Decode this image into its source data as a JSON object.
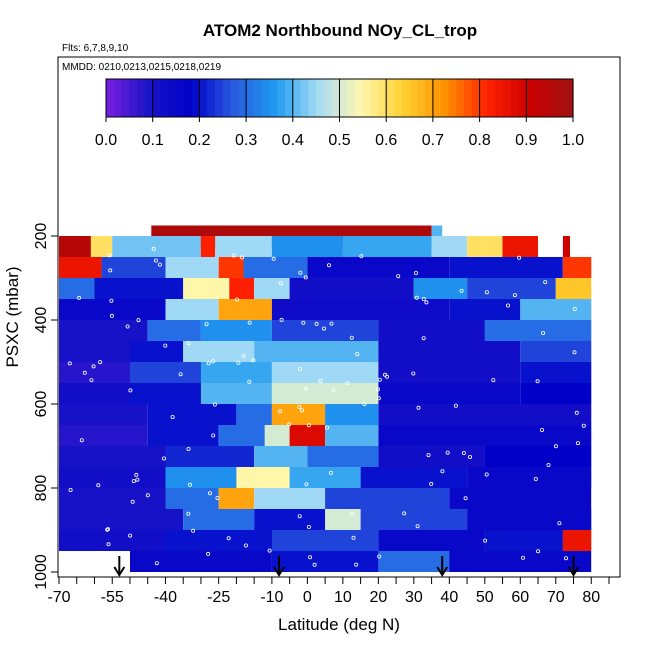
{
  "chart_data": {
    "type": "heatmap",
    "title": "ATOM2 Northbound NOy_CL_trop",
    "flights_label": "Flts: 6,7,8,9,10",
    "dates_label": "MMDD: 0210,0213,0215,0218,0219",
    "xlabel": "Latitude (deg N)",
    "ylabel": "PSXC (mbar)",
    "xlim": [
      -70,
      85
    ],
    "ylim": [
      1000,
      100
    ],
    "x_tick_labels": [
      "-70",
      "-55",
      "-40",
      "-25",
      "-10",
      "0",
      "10",
      "20",
      "30",
      "40",
      "50",
      "60",
      "70",
      "80"
    ],
    "x_tick_values": [
      -70,
      -55,
      -40,
      -25,
      -10,
      0,
      10,
      20,
      30,
      40,
      50,
      60,
      70,
      80
    ],
    "y_tick_labels": [
      "200",
      "400",
      "600",
      "800",
      "1000"
    ],
    "y_tick_values": [
      200,
      400,
      600,
      800,
      1000
    ],
    "colorbar": {
      "min": 0.0,
      "max": 1.0,
      "tick_labels": [
        "0.0",
        "0.1",
        "0.2",
        "0.3",
        "0.4",
        "0.5",
        "0.6",
        "0.7",
        "0.8",
        "0.9",
        "1.0"
      ],
      "colors": [
        "#7a1fe0",
        "#1a14c8",
        "#0000c8",
        "#2a5ae0",
        "#1e9af0",
        "#a6dcf5",
        "#fff8b0",
        "#ffd030",
        "#ff9000",
        "#ff2000",
        "#c80000",
        "#a01010"
      ]
    },
    "markers_latitude": [
      -53,
      -8,
      38,
      75
    ],
    "layers": [
      {
        "pressure": 200,
        "segments": [
          [
            -44,
            35,
            0.97
          ],
          [
            35,
            38,
            0.4
          ]
        ]
      },
      {
        "pressure": 225,
        "segments": [
          [
            -70,
            -61,
            0.95
          ],
          [
            -61,
            -55,
            0.6
          ],
          [
            -55,
            -30,
            0.42
          ],
          [
            -30,
            -26,
            0.82
          ],
          [
            -26,
            -10,
            0.45
          ],
          [
            -10,
            10,
            0.35
          ],
          [
            10,
            35,
            0.38
          ],
          [
            35,
            45,
            0.45
          ],
          [
            45,
            55,
            0.6
          ],
          [
            55,
            65,
            0.85
          ],
          [
            72,
            74,
            0.9
          ]
        ]
      },
      {
        "pressure": 275,
        "segments": [
          [
            -70,
            -58,
            0.85
          ],
          [
            -58,
            -40,
            0.25
          ],
          [
            -40,
            -25,
            0.45
          ],
          [
            -25,
            -18,
            0.8
          ],
          [
            -18,
            0,
            0.3
          ],
          [
            0,
            40,
            0.15
          ],
          [
            40,
            72,
            0.2
          ],
          [
            72,
            80,
            0.8
          ]
        ]
      },
      {
        "pressure": 325,
        "segments": [
          [
            -70,
            -60,
            0.3
          ],
          [
            -60,
            -35,
            0.2
          ],
          [
            -35,
            -22,
            0.55
          ],
          [
            -22,
            -15,
            0.82
          ],
          [
            -15,
            -5,
            0.45
          ],
          [
            -5,
            30,
            0.12
          ],
          [
            30,
            45,
            0.35
          ],
          [
            45,
            70,
            0.25
          ],
          [
            70,
            80,
            0.65
          ]
        ]
      },
      {
        "pressure": 375,
        "segments": [
          [
            -70,
            -40,
            0.15
          ],
          [
            -40,
            -25,
            0.45
          ],
          [
            -25,
            -10,
            0.7
          ],
          [
            -10,
            40,
            0.13
          ],
          [
            40,
            60,
            0.2
          ],
          [
            60,
            80,
            0.4
          ]
        ]
      },
      {
        "pressure": 425,
        "segments": [
          [
            -70,
            -45,
            0.1
          ],
          [
            -45,
            -30,
            0.3
          ],
          [
            -30,
            -10,
            0.35
          ],
          [
            -10,
            20,
            0.25
          ],
          [
            20,
            50,
            0.12
          ],
          [
            50,
            80,
            0.3
          ]
        ]
      },
      {
        "pressure": 475,
        "segments": [
          [
            -70,
            -50,
            0.1
          ],
          [
            -50,
            -35,
            0.2
          ],
          [
            -35,
            -15,
            0.45
          ],
          [
            -15,
            20,
            0.4
          ],
          [
            20,
            60,
            0.12
          ],
          [
            60,
            80,
            0.25
          ]
        ]
      },
      {
        "pressure": 525,
        "segments": [
          [
            -70,
            -50,
            0.08
          ],
          [
            -50,
            -30,
            0.25
          ],
          [
            -30,
            -10,
            0.38
          ],
          [
            -10,
            20,
            0.45
          ],
          [
            20,
            60,
            0.12
          ],
          [
            60,
            80,
            0.2
          ]
        ]
      },
      {
        "pressure": 575,
        "segments": [
          [
            -70,
            -50,
            0.12
          ],
          [
            -50,
            -30,
            0.2
          ],
          [
            -30,
            -10,
            0.4
          ],
          [
            -10,
            20,
            0.5
          ],
          [
            20,
            60,
            0.15
          ],
          [
            60,
            80,
            0.18
          ]
        ]
      },
      {
        "pressure": 625,
        "segments": [
          [
            -70,
            -45,
            0.1
          ],
          [
            -45,
            -20,
            0.2
          ],
          [
            -20,
            -10,
            0.3
          ],
          [
            -10,
            5,
            0.7
          ],
          [
            5,
            20,
            0.35
          ],
          [
            20,
            80,
            0.12
          ]
        ]
      },
      {
        "pressure": 675,
        "segments": [
          [
            -70,
            -45,
            0.08
          ],
          [
            -45,
            -25,
            0.2
          ],
          [
            -25,
            -12,
            0.3
          ],
          [
            -12,
            -5,
            0.5
          ],
          [
            -5,
            5,
            0.88
          ],
          [
            5,
            20,
            0.4
          ],
          [
            20,
            80,
            0.15
          ]
        ]
      },
      {
        "pressure": 725,
        "segments": [
          [
            -70,
            -40,
            0.1
          ],
          [
            -40,
            -15,
            0.22
          ],
          [
            -15,
            0,
            0.4
          ],
          [
            0,
            20,
            0.3
          ],
          [
            20,
            50,
            0.12
          ],
          [
            50,
            80,
            0.18
          ]
        ]
      },
      {
        "pressure": 775,
        "segments": [
          [
            -70,
            -40,
            0.12
          ],
          [
            -40,
            -20,
            0.35
          ],
          [
            -20,
            -5,
            0.55
          ],
          [
            -5,
            15,
            0.38
          ],
          [
            15,
            45,
            0.2
          ],
          [
            45,
            80,
            0.15
          ]
        ]
      },
      {
        "pressure": 825,
        "segments": [
          [
            -70,
            -40,
            0.1
          ],
          [
            -40,
            -25,
            0.3
          ],
          [
            -25,
            -15,
            0.7
          ],
          [
            -15,
            5,
            0.45
          ],
          [
            5,
            40,
            0.25
          ],
          [
            40,
            80,
            0.15
          ]
        ]
      },
      {
        "pressure": 875,
        "segments": [
          [
            -70,
            -35,
            0.1
          ],
          [
            -35,
            -15,
            0.3
          ],
          [
            -15,
            5,
            0.2
          ],
          [
            5,
            15,
            0.5
          ],
          [
            15,
            45,
            0.25
          ],
          [
            45,
            80,
            0.15
          ]
        ]
      },
      {
        "pressure": 925,
        "segments": [
          [
            -70,
            -40,
            0.12
          ],
          [
            -40,
            -10,
            0.2
          ],
          [
            -10,
            20,
            0.25
          ],
          [
            20,
            50,
            0.15
          ],
          [
            50,
            72,
            0.2
          ],
          [
            72,
            80,
            0.85
          ]
        ]
      },
      {
        "pressure": 975,
        "segments": [
          [
            -50,
            -10,
            0.15
          ],
          [
            -10,
            20,
            0.2
          ],
          [
            20,
            40,
            0.3
          ],
          [
            40,
            80,
            0.15
          ]
        ]
      }
    ]
  }
}
